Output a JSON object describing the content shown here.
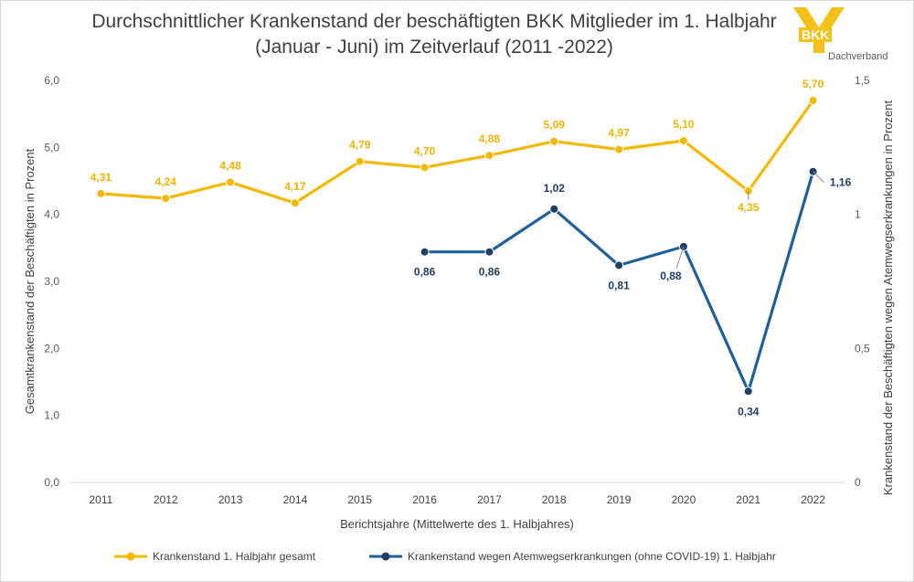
{
  "chart_data": {
    "type": "line",
    "title_line1": "Durchschnittlicher Krankenstand der beschäftigten BKK Mitglieder im 1. Halbjahr",
    "title_line2": "(Januar - Juni) im Zeitverlauf (2011 -2022)",
    "xlabel": "Berichtsjahre (Mittelwerte des 1. Halbjahres)",
    "ylabel_left": "Gesamtkrankenstand der Beschäftigten in Prozent",
    "ylabel_right": "Krankenstand der Beschäftigten wegen Atemwegserkrankungen in Prozent",
    "categories": [
      "2011",
      "2012",
      "2013",
      "2014",
      "2015",
      "2016",
      "2017",
      "2018",
      "2019",
      "2020",
      "2021",
      "2022"
    ],
    "yticks_left": [
      "0,0",
      "1,0",
      "2,0",
      "3,0",
      "4,0",
      "5,0",
      "6,0"
    ],
    "yticks_right": [
      "0",
      "0,5",
      "1",
      "1,5"
    ],
    "ylim_left": [
      0,
      6
    ],
    "ylim_right": [
      0,
      1.5
    ],
    "grid": false,
    "legend_position": "bottom",
    "series": [
      {
        "name": "Krankenstand 1. Halbjahr gesamt",
        "axis": "left",
        "color": "#f4b800",
        "values": [
          4.31,
          4.24,
          4.48,
          4.17,
          4.79,
          4.7,
          4.88,
          5.09,
          4.97,
          5.1,
          4.35,
          5.7
        ],
        "labels": [
          "4,31",
          "4,24",
          "4,48",
          "4,17",
          "4,79",
          "4,70",
          "4,88",
          "5,09",
          "4,97",
          "5,10",
          "4,35",
          "5,70"
        ]
      },
      {
        "name": "Krankenstand wegen Atemwegserkrankungen (ohne COVID-19) 1. Halbjahr",
        "axis": "right",
        "color": "#1f5f9e",
        "values": [
          null,
          null,
          null,
          null,
          null,
          0.86,
          0.86,
          1.02,
          0.81,
          0.88,
          0.34,
          1.16
        ],
        "labels": [
          "",
          "",
          "",
          "",
          "",
          "0,86",
          "0,86",
          "1,02",
          "0,81",
          "0,88",
          "0,34",
          "1,16"
        ]
      }
    ]
  },
  "logo": {
    "text": "BKK",
    "subtext": "Dachverband",
    "color": "#f2c21a"
  }
}
